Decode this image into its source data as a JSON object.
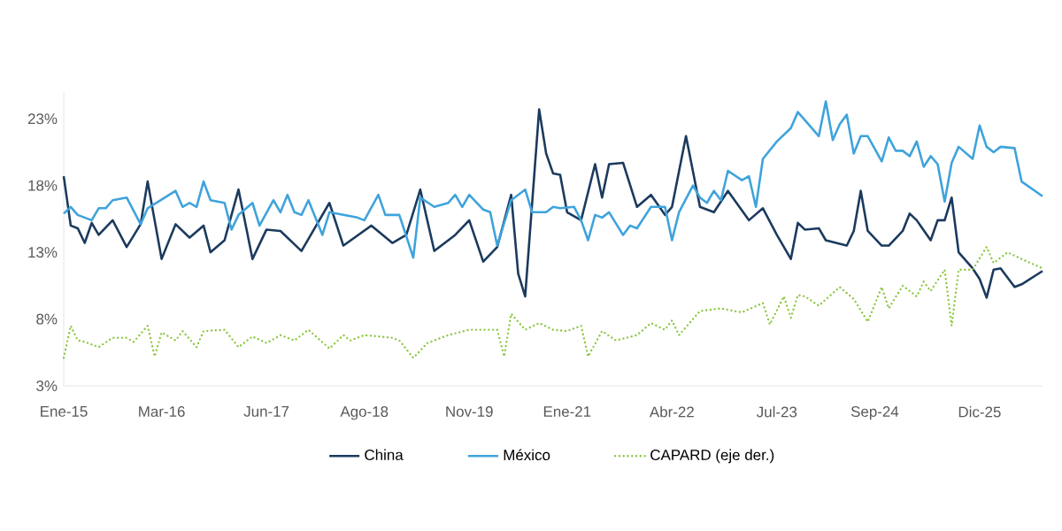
{
  "chart_data": {
    "type": "line",
    "xlim": [
      "2015-01",
      "2026-09"
    ],
    "ylim": [
      3,
      25
    ],
    "xticks": [
      {
        "value": "2015-01",
        "label": "Ene-15"
      },
      {
        "value": "2016-03",
        "label": "Mar-16"
      },
      {
        "value": "2017-06",
        "label": "Jun-17"
      },
      {
        "value": "2018-08",
        "label": "Ago-18"
      },
      {
        "value": "2019-11",
        "label": "Nov-19"
      },
      {
        "value": "2021-01",
        "label": "Ene-21"
      },
      {
        "value": "2022-04",
        "label": "Abr-22"
      },
      {
        "value": "2023-07",
        "label": "Jul-23"
      },
      {
        "value": "2024-09",
        "label": "Sep-24"
      },
      {
        "value": "2025-12",
        "label": "Dic-25"
      }
    ],
    "yticks": [
      {
        "value": 3,
        "label": "3%"
      },
      {
        "value": 8,
        "label": "8%"
      },
      {
        "value": 13,
        "label": "13%"
      },
      {
        "value": 18,
        "label": "18%"
      },
      {
        "value": 23,
        "label": "23%"
      }
    ],
    "grid": false,
    "legend": "bottom",
    "marker": "none",
    "series": [
      {
        "name": "China",
        "color": "#1b3a5e",
        "line_style": "solid",
        "x": [
          "2015-01",
          "2015-02",
          "2015-03",
          "2015-04",
          "2015-05",
          "2015-06",
          "2015-08",
          "2015-10",
          "2015-12",
          "2016-01",
          "2016-03",
          "2016-05",
          "2016-07",
          "2016-09",
          "2016-10",
          "2016-12",
          "2017-02",
          "2017-04",
          "2017-06",
          "2017-08",
          "2017-11",
          "2018-03",
          "2018-05",
          "2018-09",
          "2018-12",
          "2019-02",
          "2019-04",
          "2019-06",
          "2019-09",
          "2019-11",
          "2020-01",
          "2020-03",
          "2020-05",
          "2020-06",
          "2020-07",
          "2020-09",
          "2020-10",
          "2020-11",
          "2020-12",
          "2021-01",
          "2021-03",
          "2021-05",
          "2021-06",
          "2021-07",
          "2021-09",
          "2021-11",
          "2022-01",
          "2022-03",
          "2022-04",
          "2022-06",
          "2022-08",
          "2022-10",
          "2022-12",
          "2023-03",
          "2023-05",
          "2023-07",
          "2023-09",
          "2023-10",
          "2023-11",
          "2024-01",
          "2024-02",
          "2024-05",
          "2024-06",
          "2024-07",
          "2024-08",
          "2024-10",
          "2024-11",
          "2025-01",
          "2025-02",
          "2025-03",
          "2025-05",
          "2025-06",
          "2025-07",
          "2025-08",
          "2025-09",
          "2025-11",
          "2025-12",
          "2026-01",
          "2026-02",
          "2026-03",
          "2026-05",
          "2026-06",
          "2026-09"
        ],
        "values": [
          18.7,
          15.0,
          14.8,
          13.7,
          15.2,
          14.3,
          15.4,
          13.4,
          15.1,
          18.3,
          12.5,
          15.1,
          14.1,
          15.0,
          13.0,
          13.9,
          17.7,
          12.5,
          14.7,
          14.6,
          13.1,
          16.7,
          13.5,
          15.0,
          13.7,
          14.3,
          17.7,
          13.1,
          14.3,
          15.4,
          12.3,
          13.4,
          17.3,
          11.4,
          9.7,
          23.7,
          20.4,
          18.9,
          18.8,
          16.0,
          15.4,
          19.6,
          17.1,
          19.6,
          19.7,
          16.4,
          17.3,
          15.8,
          16.4,
          21.7,
          16.4,
          16.0,
          17.6,
          15.4,
          16.3,
          14.3,
          12.5,
          15.2,
          14.7,
          14.8,
          13.9,
          13.5,
          14.6,
          17.6,
          14.6,
          13.5,
          13.5,
          14.6,
          15.9,
          15.4,
          13.9,
          15.4,
          15.4,
          17.1,
          13.0,
          11.8,
          11.0,
          9.6,
          11.7,
          11.8,
          10.4,
          10.6,
          11.6
        ]
      },
      {
        "name": "México",
        "color": "#3fa3dc",
        "line_style": "solid",
        "x": [
          "2015-01",
          "2015-02",
          "2015-03",
          "2015-05",
          "2015-06",
          "2015-07",
          "2015-08",
          "2015-10",
          "2015-12",
          "2016-01",
          "2016-05",
          "2016-06",
          "2016-07",
          "2016-08",
          "2016-09",
          "2016-10",
          "2016-12",
          "2017-01",
          "2017-02",
          "2017-04",
          "2017-05",
          "2017-07",
          "2017-08",
          "2017-09",
          "2017-10",
          "2017-11",
          "2017-12",
          "2018-02",
          "2018-03",
          "2018-05",
          "2018-07",
          "2018-08",
          "2018-10",
          "2018-11",
          "2019-01",
          "2019-03",
          "2019-04",
          "2019-06",
          "2019-08",
          "2019-09",
          "2019-10",
          "2019-11",
          "2020-01",
          "2020-02",
          "2020-03",
          "2020-05",
          "2020-07",
          "2020-08",
          "2020-10",
          "2020-11",
          "2020-12",
          "2021-02",
          "2021-03",
          "2021-04",
          "2021-05",
          "2021-06",
          "2021-07",
          "2021-09",
          "2021-10",
          "2021-11",
          "2022-01",
          "2022-03",
          "2022-04",
          "2022-05",
          "2022-07",
          "2022-08",
          "2022-09",
          "2022-10",
          "2022-11",
          "2022-12",
          "2023-02",
          "2023-03",
          "2023-04",
          "2023-05",
          "2023-07",
          "2023-09",
          "2023-10",
          "2024-01",
          "2024-02",
          "2024-03",
          "2024-04",
          "2024-05",
          "2024-06",
          "2024-07",
          "2024-08",
          "2024-10",
          "2024-11",
          "2024-12",
          "2025-01",
          "2025-02",
          "2025-03",
          "2025-04",
          "2025-05",
          "2025-06",
          "2025-07",
          "2025-08",
          "2025-09",
          "2025-11",
          "2025-12",
          "2026-01",
          "2026-02",
          "2026-03",
          "2026-05",
          "2026-06",
          "2026-09"
        ],
        "values": [
          15.9,
          16.4,
          15.8,
          15.4,
          16.3,
          16.3,
          16.9,
          17.1,
          15.1,
          16.3,
          17.6,
          16.4,
          16.7,
          16.4,
          18.3,
          16.9,
          16.7,
          14.7,
          15.8,
          16.7,
          15.0,
          16.9,
          16.0,
          17.3,
          16.0,
          15.8,
          16.9,
          14.3,
          16.0,
          15.8,
          15.6,
          15.4,
          17.3,
          15.8,
          15.8,
          12.6,
          17.1,
          16.4,
          16.7,
          17.3,
          16.4,
          17.3,
          16.2,
          16.0,
          13.5,
          16.9,
          17.7,
          16.0,
          16.0,
          16.4,
          16.3,
          16.4,
          15.4,
          13.9,
          15.8,
          15.6,
          16.0,
          14.3,
          15.0,
          14.8,
          16.4,
          16.4,
          13.9,
          16.0,
          18.0,
          17.1,
          16.7,
          17.6,
          16.9,
          19.1,
          18.4,
          18.7,
          16.4,
          20.0,
          21.3,
          22.3,
          23.5,
          21.7,
          24.3,
          21.4,
          22.6,
          23.3,
          20.4,
          21.7,
          21.7,
          19.8,
          21.6,
          20.6,
          20.6,
          20.2,
          21.3,
          19.4,
          20.2,
          19.6,
          16.8,
          19.7,
          20.9,
          20.0,
          22.5,
          20.9,
          20.5,
          20.9,
          20.8,
          18.3,
          17.2
        ]
      },
      {
        "name": "CAPARD (eje der.)",
        "color": "#8cc63f",
        "line_style": "dotted",
        "x": [
          "2015-01",
          "2015-02",
          "2015-03",
          "2015-04",
          "2015-06",
          "2015-08",
          "2015-10",
          "2015-11",
          "2016-01",
          "2016-02",
          "2016-03",
          "2016-05",
          "2016-06",
          "2016-08",
          "2016-09",
          "2016-12",
          "2017-02",
          "2017-04",
          "2017-06",
          "2017-08",
          "2017-10",
          "2017-12",
          "2018-03",
          "2018-05",
          "2018-06",
          "2018-08",
          "2018-12",
          "2019-01",
          "2019-03",
          "2019-05",
          "2019-08",
          "2019-11",
          "2020-03",
          "2020-04",
          "2020-05",
          "2020-07",
          "2020-09",
          "2020-11",
          "2021-01",
          "2021-03",
          "2021-04",
          "2021-06",
          "2021-08",
          "2021-11",
          "2022-01",
          "2022-03",
          "2022-04",
          "2022-05",
          "2022-08",
          "2022-11",
          "2023-02",
          "2023-05",
          "2023-06",
          "2023-08",
          "2023-09",
          "2023-10",
          "2023-11",
          "2024-01",
          "2024-04",
          "2024-06",
          "2024-08",
          "2024-10",
          "2024-11",
          "2025-01",
          "2025-03",
          "2025-04",
          "2025-05",
          "2025-07",
          "2025-08",
          "2025-09",
          "2025-11",
          "2026-01",
          "2026-02",
          "2026-04",
          "2026-06",
          "2026-09"
        ],
        "values": [
          5.1,
          7.5,
          6.4,
          6.3,
          5.9,
          6.6,
          6.6,
          6.3,
          7.5,
          5.2,
          7.0,
          6.4,
          7.1,
          5.9,
          7.1,
          7.2,
          5.9,
          6.7,
          6.2,
          6.8,
          6.4,
          7.2,
          5.8,
          6.8,
          6.4,
          6.8,
          6.6,
          6.4,
          5.1,
          6.2,
          6.8,
          7.2,
          7.2,
          5.2,
          8.4,
          7.2,
          7.7,
          7.2,
          7.1,
          7.5,
          5.2,
          7.1,
          6.4,
          6.8,
          7.7,
          7.2,
          7.9,
          6.8,
          8.6,
          8.8,
          8.5,
          9.2,
          7.6,
          9.7,
          8.1,
          9.8,
          9.7,
          9.0,
          10.4,
          9.5,
          7.8,
          10.4,
          8.8,
          10.5,
          9.7,
          10.8,
          10.1,
          11.7,
          7.5,
          11.7,
          11.7,
          13.4,
          12.2,
          13.0,
          12.5,
          11.8
        ]
      }
    ]
  }
}
